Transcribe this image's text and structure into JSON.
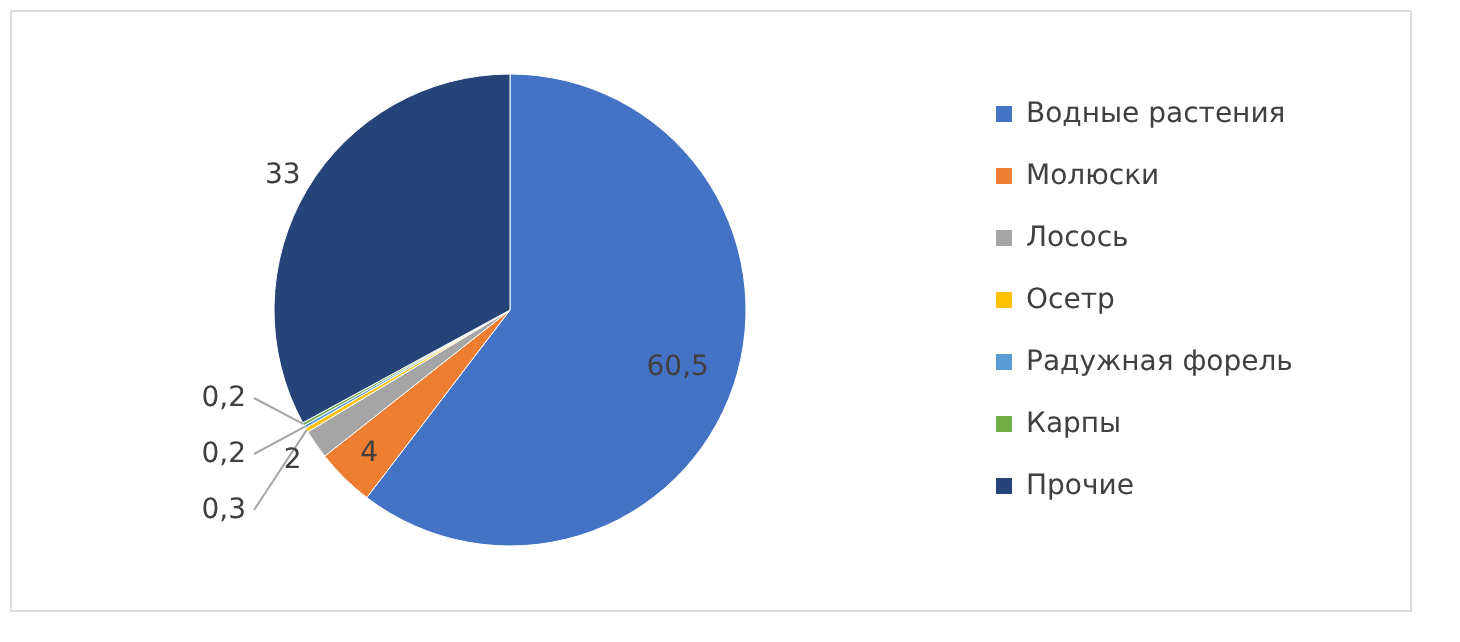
{
  "chart_data": {
    "type": "pie",
    "categories": [
      "Водные растения",
      "Молюски",
      "Лосось",
      "Осетр",
      "Радужная форель",
      "Карпы",
      "Прочие"
    ],
    "values": [
      60.5,
      4,
      2,
      0.3,
      0.2,
      0.2,
      33
    ],
    "value_labels": [
      "60,5",
      "4",
      "2",
      "0,3",
      "0,2",
      "0,2",
      "33"
    ],
    "colors": [
      "#4472c4",
      "#ed7d31",
      "#a5a5a5",
      "#ffc000",
      "#5b9bd5",
      "#70ad47",
      "#264478"
    ],
    "legend": "right"
  }
}
